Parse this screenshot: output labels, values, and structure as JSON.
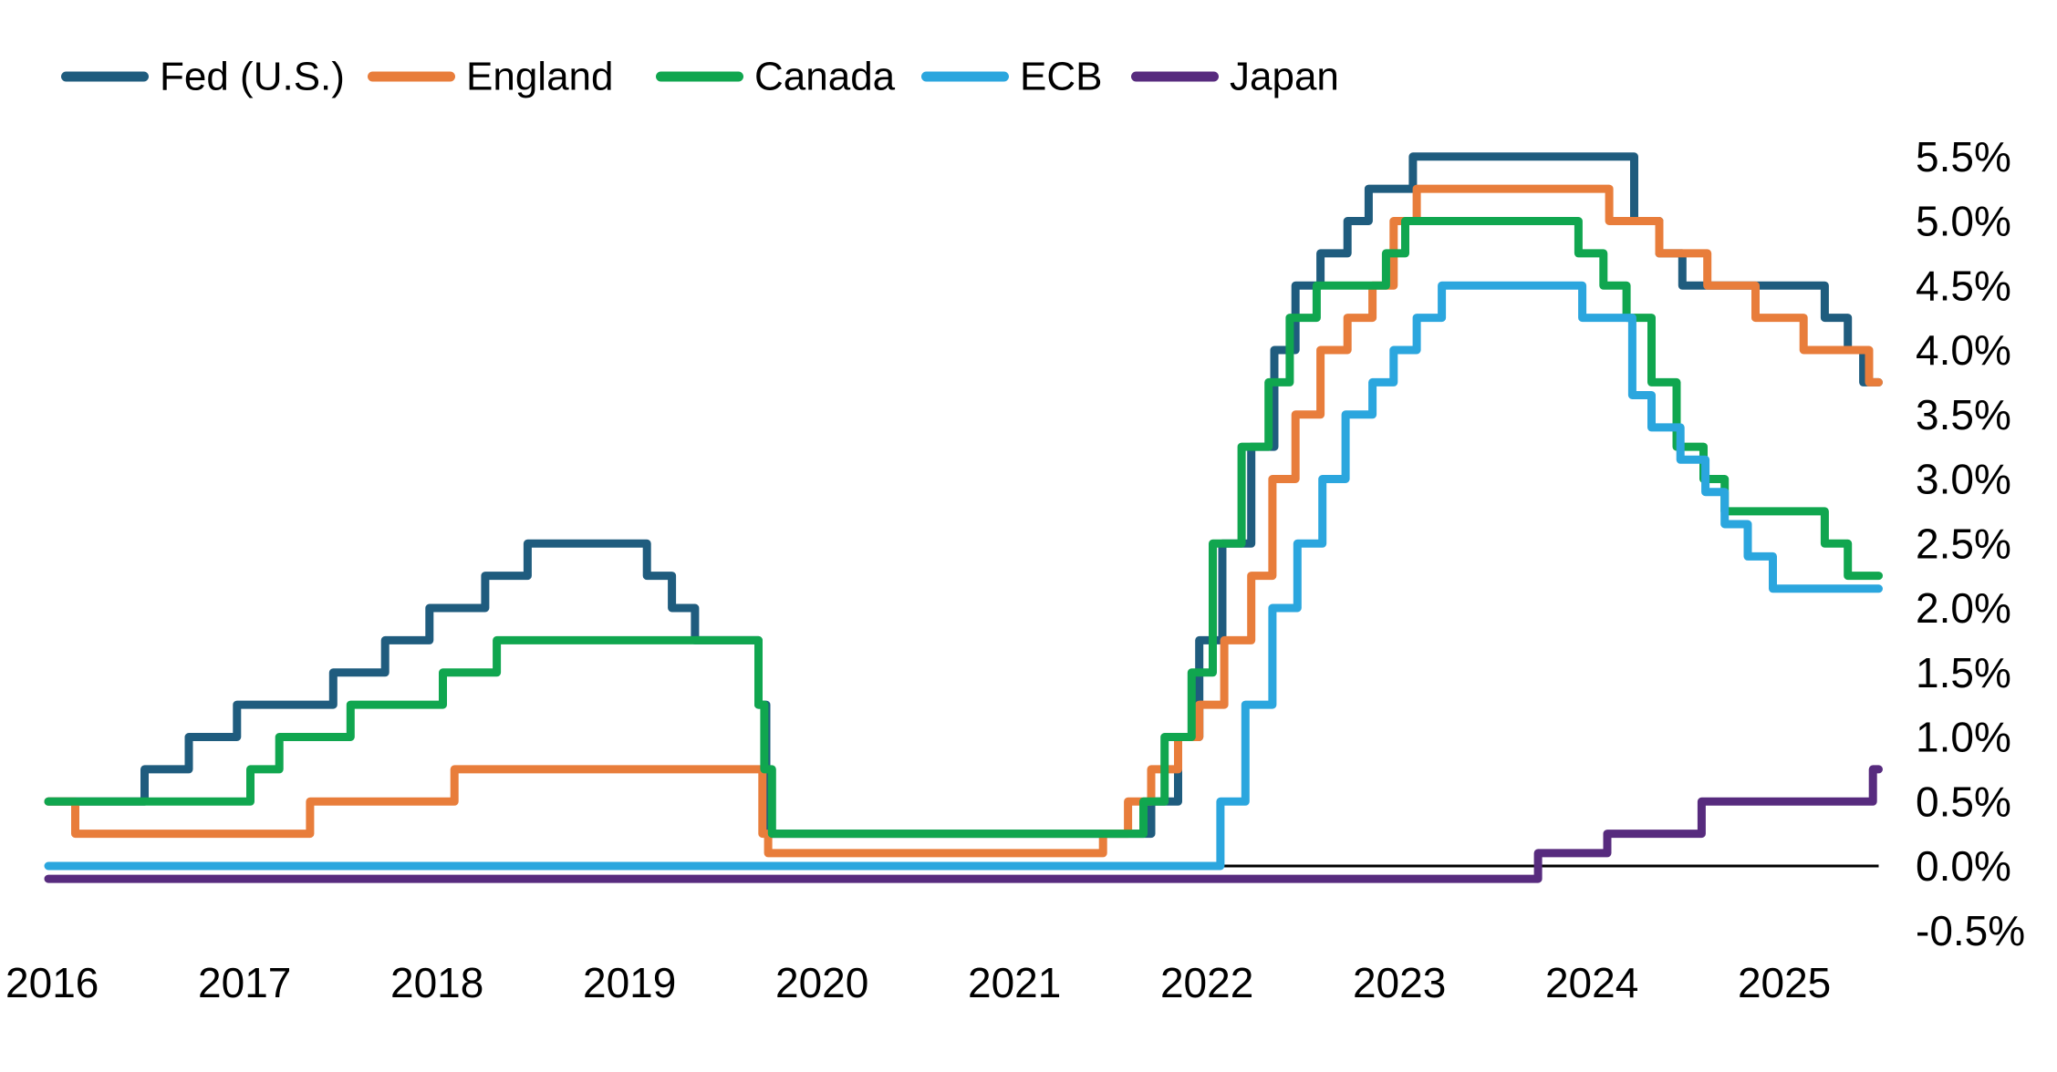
{
  "chart_data": {
    "type": "line",
    "step_interpolation": "post",
    "title": "",
    "legend_position": "top-left",
    "grid": false,
    "background_color": "#ffffff",
    "zero_line": {
      "show": true,
      "color": "#000000"
    },
    "x_range": [
      2016.48,
      2025.99
    ],
    "y_range": [
      -0.5,
      5.5
    ],
    "x_ticks": [
      {
        "t": 2016.5,
        "label": "2016"
      },
      {
        "t": 2017.5,
        "label": "2017"
      },
      {
        "t": 2018.5,
        "label": "2018"
      },
      {
        "t": 2019.5,
        "label": "2019"
      },
      {
        "t": 2020.5,
        "label": "2020"
      },
      {
        "t": 2021.5,
        "label": "2021"
      },
      {
        "t": 2022.5,
        "label": "2022"
      },
      {
        "t": 2023.5,
        "label": "2023"
      },
      {
        "t": 2024.5,
        "label": "2024"
      },
      {
        "t": 2025.5,
        "label": "2025"
      }
    ],
    "y_ticks": [
      {
        "v": 5.5,
        "label": "5.5%"
      },
      {
        "v": 5.0,
        "label": "5.0%"
      },
      {
        "v": 4.5,
        "label": "4.5%"
      },
      {
        "v": 4.0,
        "label": "4.0%"
      },
      {
        "v": 3.5,
        "label": "3.5%"
      },
      {
        "v": 3.0,
        "label": "3.0%"
      },
      {
        "v": 2.5,
        "label": "2.5%"
      },
      {
        "v": 2.0,
        "label": "2.0%"
      },
      {
        "v": 1.5,
        "label": "1.5%"
      },
      {
        "v": 1.0,
        "label": "1.0%"
      },
      {
        "v": 0.5,
        "label": "0.5%"
      },
      {
        "v": 0.0,
        "label": "0.0%"
      },
      {
        "v": -0.5,
        "label": "-0.5%"
      }
    ],
    "series": [
      {
        "name": "Fed (U.S.)",
        "color": "#1F5C7E",
        "points": [
          [
            2016.48,
            0.5
          ],
          [
            2016.98,
            0.75
          ],
          [
            2017.21,
            1.0
          ],
          [
            2017.46,
            1.25
          ],
          [
            2017.96,
            1.5
          ],
          [
            2018.23,
            1.75
          ],
          [
            2018.46,
            2.0
          ],
          [
            2018.75,
            2.25
          ],
          [
            2018.97,
            2.5
          ],
          [
            2019.59,
            2.25
          ],
          [
            2019.72,
            2.0
          ],
          [
            2019.84,
            1.75
          ],
          [
            2020.17,
            1.25
          ],
          [
            2020.21,
            0.25
          ],
          [
            2022.21,
            0.5
          ],
          [
            2022.35,
            1.0
          ],
          [
            2022.46,
            1.75
          ],
          [
            2022.58,
            2.5
          ],
          [
            2022.73,
            3.25
          ],
          [
            2022.85,
            4.0
          ],
          [
            2022.96,
            4.5
          ],
          [
            2023.09,
            4.75
          ],
          [
            2023.23,
            5.0
          ],
          [
            2023.34,
            5.25
          ],
          [
            2023.57,
            5.5
          ],
          [
            2024.72,
            5.0
          ],
          [
            2024.85,
            4.75
          ],
          [
            2024.97,
            4.5
          ],
          [
            2025.71,
            4.25
          ],
          [
            2025.83,
            4.0
          ],
          [
            2025.91,
            3.75
          ]
        ]
      },
      {
        "name": "England",
        "color": "#E87D3B",
        "points": [
          [
            2016.48,
            0.5
          ],
          [
            2016.62,
            0.25
          ],
          [
            2017.84,
            0.5
          ],
          [
            2018.59,
            0.75
          ],
          [
            2020.19,
            0.25
          ],
          [
            2020.22,
            0.1
          ],
          [
            2021.96,
            0.25
          ],
          [
            2022.09,
            0.5
          ],
          [
            2022.21,
            0.75
          ],
          [
            2022.35,
            1.0
          ],
          [
            2022.46,
            1.25
          ],
          [
            2022.59,
            1.75
          ],
          [
            2022.73,
            2.25
          ],
          [
            2022.84,
            3.0
          ],
          [
            2022.96,
            3.5
          ],
          [
            2023.09,
            4.0
          ],
          [
            2023.23,
            4.25
          ],
          [
            2023.36,
            4.5
          ],
          [
            2023.47,
            5.0
          ],
          [
            2023.59,
            5.25
          ],
          [
            2024.59,
            5.0
          ],
          [
            2024.85,
            4.75
          ],
          [
            2025.1,
            4.5
          ],
          [
            2025.35,
            4.25
          ],
          [
            2025.6,
            4.0
          ],
          [
            2025.94,
            3.75
          ]
        ]
      },
      {
        "name": "Canada",
        "color": "#10A64F",
        "points": [
          [
            2016.48,
            0.5
          ],
          [
            2017.53,
            0.75
          ],
          [
            2017.68,
            1.0
          ],
          [
            2018.05,
            1.25
          ],
          [
            2018.53,
            1.5
          ],
          [
            2018.81,
            1.75
          ],
          [
            2020.17,
            1.25
          ],
          [
            2020.2,
            0.75
          ],
          [
            2020.24,
            0.25
          ],
          [
            2022.17,
            0.5
          ],
          [
            2022.28,
            1.0
          ],
          [
            2022.42,
            1.5
          ],
          [
            2022.53,
            2.5
          ],
          [
            2022.68,
            3.25
          ],
          [
            2022.82,
            3.75
          ],
          [
            2022.93,
            4.25
          ],
          [
            2023.07,
            4.5
          ],
          [
            2023.43,
            4.75
          ],
          [
            2023.53,
            5.0
          ],
          [
            2024.43,
            4.75
          ],
          [
            2024.56,
            4.5
          ],
          [
            2024.68,
            4.25
          ],
          [
            2024.81,
            3.75
          ],
          [
            2024.94,
            3.25
          ],
          [
            2025.08,
            3.0
          ],
          [
            2025.19,
            2.75
          ],
          [
            2025.71,
            2.5
          ],
          [
            2025.83,
            2.25
          ]
        ]
      },
      {
        "name": "ECB",
        "color": "#2BA6DE",
        "points": [
          [
            2016.48,
            0.0
          ],
          [
            2022.57,
            0.5
          ],
          [
            2022.7,
            1.25
          ],
          [
            2022.84,
            2.0
          ],
          [
            2022.97,
            2.5
          ],
          [
            2023.1,
            3.0
          ],
          [
            2023.22,
            3.5
          ],
          [
            2023.36,
            3.75
          ],
          [
            2023.47,
            4.0
          ],
          [
            2023.59,
            4.25
          ],
          [
            2023.72,
            4.5
          ],
          [
            2024.45,
            4.25
          ],
          [
            2024.71,
            3.65
          ],
          [
            2024.81,
            3.4
          ],
          [
            2024.96,
            3.15
          ],
          [
            2025.09,
            2.9
          ],
          [
            2025.19,
            2.65
          ],
          [
            2025.31,
            2.4
          ],
          [
            2025.44,
            2.15
          ]
        ]
      },
      {
        "name": "Japan",
        "color": "#572B7E",
        "points": [
          [
            2016.48,
            -0.1
          ],
          [
            2024.22,
            0.1
          ],
          [
            2024.58,
            0.25
          ],
          [
            2025.07,
            0.5
          ],
          [
            2025.96,
            0.75
          ]
        ]
      }
    ]
  }
}
